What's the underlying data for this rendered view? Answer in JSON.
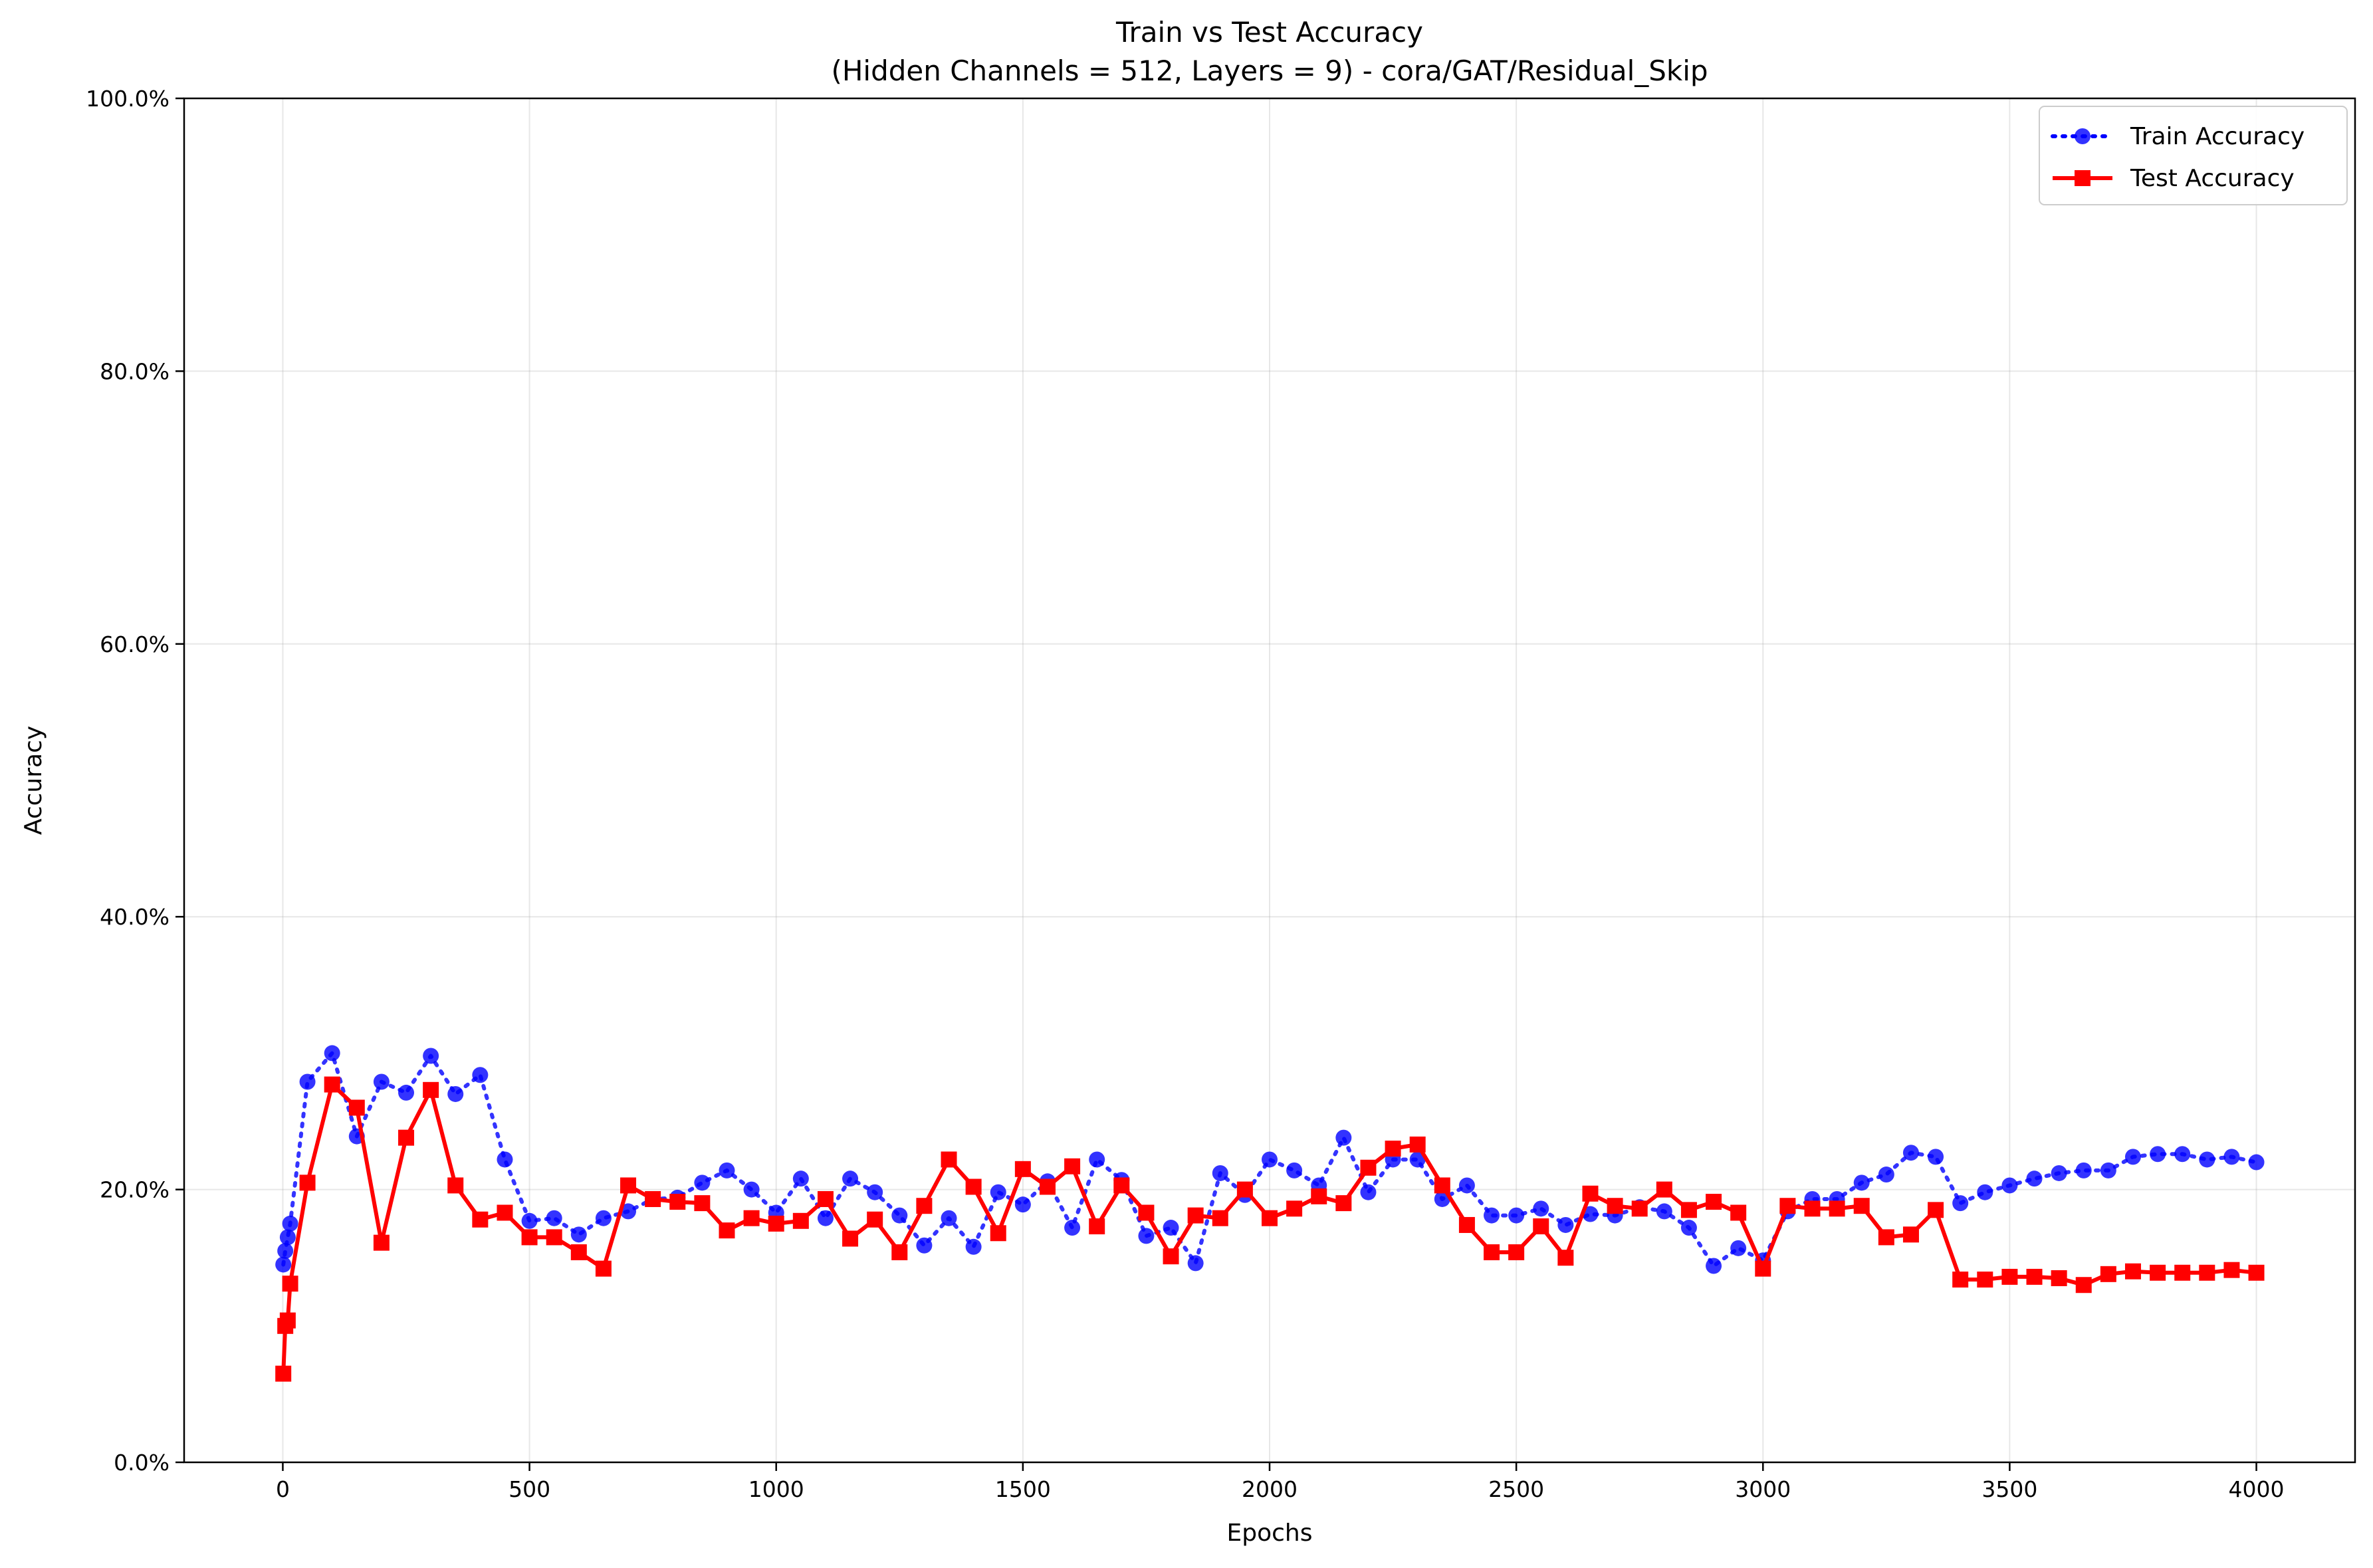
{
  "chart_data": {
    "type": "line",
    "title": "Train vs Test Accuracy",
    "subtitle": "(Hidden Channels = 512, Layers = 9) - cora/GAT/Residual_Skip",
    "xlabel": "Epochs",
    "ylabel": "Accuracy",
    "xlim": [
      -200,
      4200
    ],
    "ylim": [
      0,
      1.0
    ],
    "xticks": [
      0,
      500,
      1000,
      1500,
      2000,
      2500,
      3000,
      3500,
      4000
    ],
    "xtick_labels": [
      "0",
      "500",
      "1000",
      "1500",
      "2000",
      "2500",
      "3000",
      "3500",
      "4000"
    ],
    "yticks": [
      0,
      0.2,
      0.4,
      0.6,
      0.8,
      1.0
    ],
    "ytick_labels": [
      "0.0%",
      "20.0%",
      "40.0%",
      "60.0%",
      "80.0%",
      "100.0%"
    ],
    "grid": true,
    "legend_position": "top-right",
    "x": [
      1,
      5,
      10,
      15,
      50,
      100,
      150,
      200,
      250,
      300,
      350,
      400,
      450,
      500,
      550,
      600,
      650,
      700,
      750,
      800,
      850,
      900,
      950,
      1000,
      1050,
      1100,
      1150,
      1200,
      1250,
      1300,
      1350,
      1400,
      1450,
      1500,
      1550,
      1600,
      1650,
      1700,
      1750,
      1800,
      1850,
      1900,
      1950,
      2000,
      2050,
      2100,
      2150,
      2200,
      2250,
      2300,
      2350,
      2400,
      2450,
      2500,
      2550,
      2600,
      2650,
      2700,
      2750,
      2800,
      2850,
      2900,
      2950,
      3000,
      3050,
      3100,
      3150,
      3200,
      3250,
      3300,
      3350,
      3400,
      3450,
      3500,
      3550,
      3600,
      3650,
      3700,
      3750,
      3800,
      3850,
      3900,
      3950,
      4000
    ],
    "series": [
      {
        "name": "Train Accuracy",
        "color": "#0000ff",
        "line_style": "dotted",
        "marker": "circle",
        "values": [
          0.145,
          0.155,
          0.165,
          0.175,
          0.279,
          0.3,
          0.239,
          0.279,
          0.271,
          0.298,
          0.27,
          0.284,
          0.222,
          0.177,
          0.179,
          0.167,
          0.179,
          0.184,
          0.193,
          0.194,
          0.205,
          0.214,
          0.2,
          0.183,
          0.208,
          0.179,
          0.208,
          0.198,
          0.181,
          0.159,
          0.179,
          0.158,
          0.198,
          0.189,
          0.206,
          0.172,
          0.222,
          0.207,
          0.166,
          0.172,
          0.146,
          0.212,
          0.196,
          0.222,
          0.214,
          0.203,
          0.238,
          0.198,
          0.222,
          0.222,
          0.193,
          0.203,
          0.181,
          0.181,
          0.186,
          0.174,
          0.182,
          0.181,
          0.187,
          0.184,
          0.172,
          0.144,
          0.157,
          0.148,
          0.184,
          0.193,
          0.193,
          0.205,
          0.211,
          0.227,
          0.224,
          0.19,
          0.198,
          0.203,
          0.208,
          0.212,
          0.214,
          0.214,
          0.224,
          0.226,
          0.226,
          0.222,
          0.224,
          0.22
        ]
      },
      {
        "name": "Test Accuracy",
        "color": "#ff0000",
        "line_style": "solid",
        "marker": "square",
        "values": [
          0.065,
          0.1,
          0.104,
          0.131,
          0.205,
          0.277,
          0.26,
          0.161,
          0.238,
          0.273,
          0.203,
          0.178,
          0.183,
          0.165,
          0.165,
          0.154,
          0.142,
          0.203,
          0.193,
          0.191,
          0.19,
          0.17,
          0.179,
          0.175,
          0.177,
          0.193,
          0.164,
          0.178,
          0.154,
          0.188,
          0.222,
          0.202,
          0.168,
          0.215,
          0.202,
          0.217,
          0.173,
          0.203,
          0.183,
          0.151,
          0.181,
          0.179,
          0.2,
          0.179,
          0.186,
          0.195,
          0.19,
          0.216,
          0.23,
          0.233,
          0.203,
          0.174,
          0.154,
          0.154,
          0.173,
          0.15,
          0.197,
          0.188,
          0.186,
          0.2,
          0.185,
          0.191,
          0.183,
          0.142,
          0.188,
          0.186,
          0.186,
          0.188,
          0.165,
          0.167,
          0.185,
          0.134,
          0.134,
          0.136,
          0.136,
          0.135,
          0.13,
          0.138,
          0.14,
          0.139,
          0.139,
          0.139,
          0.141,
          0.139
        ]
      }
    ]
  }
}
